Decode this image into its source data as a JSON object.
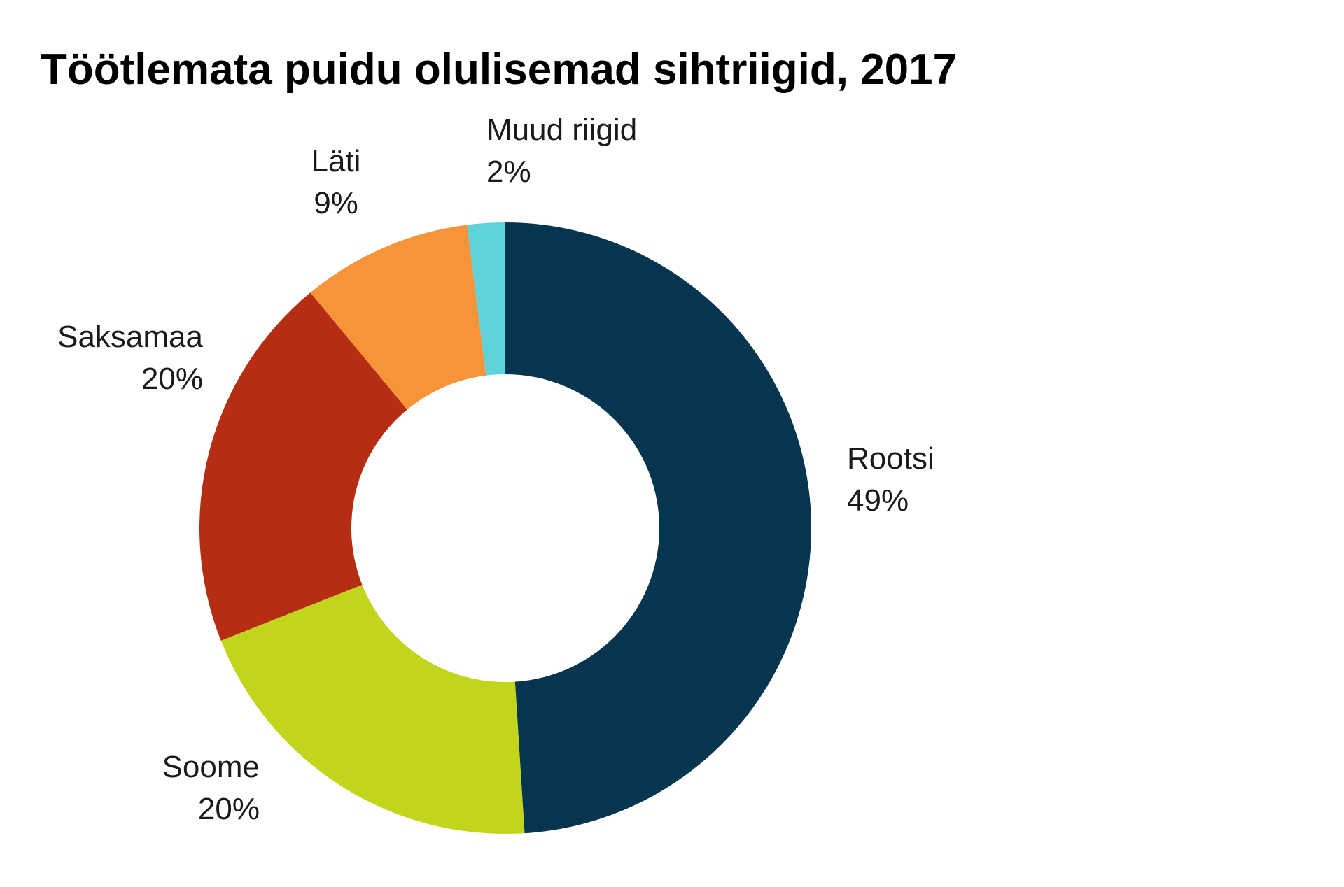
{
  "chart_data": {
    "type": "donut",
    "title": "Töötlemata puidu olulisemad sihtriigid, 2017",
    "categories": [
      "Rootsi",
      "Soome",
      "Saksamaa",
      "Läti",
      "Muud riigid"
    ],
    "values": [
      49,
      20,
      20,
      9,
      2
    ],
    "value_labels": [
      "49%",
      "20%",
      "20%",
      "9%",
      "2%"
    ],
    "colors": [
      "#06354f",
      "#c2d41b",
      "#b52e14",
      "#f7943a",
      "#5fd3db"
    ]
  }
}
